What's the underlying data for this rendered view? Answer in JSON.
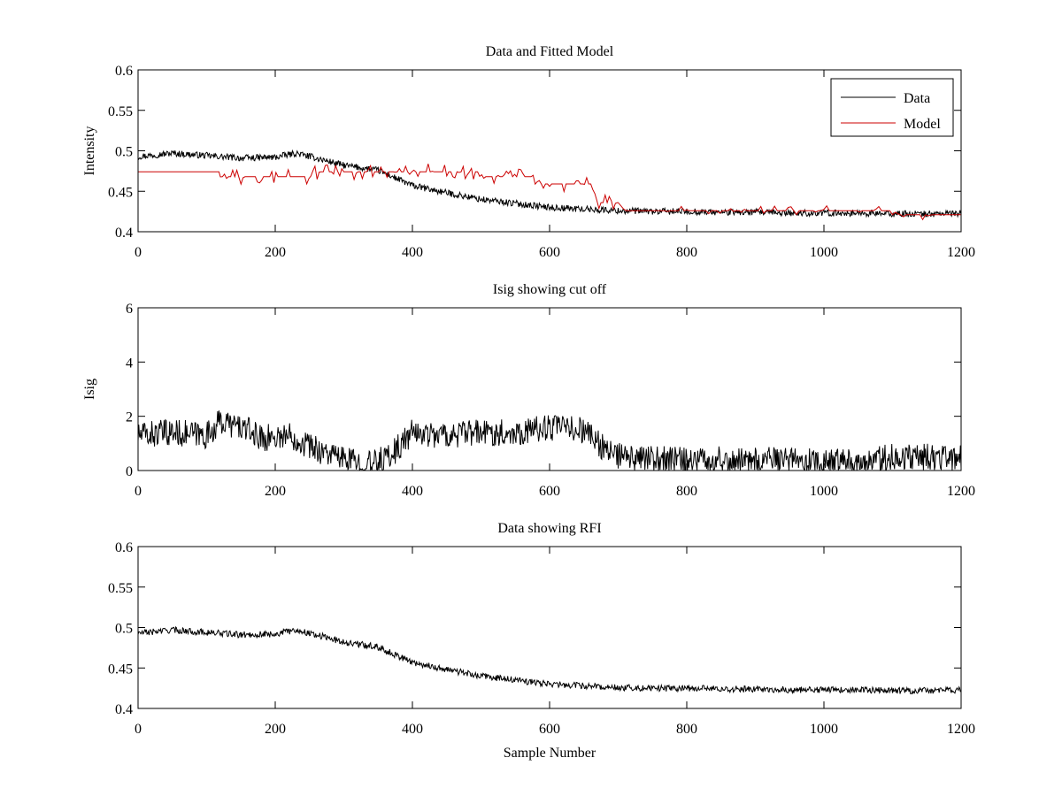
{
  "chart_data": [
    {
      "type": "line",
      "title": "Data and Fitted Model",
      "xlabel": "",
      "ylabel": "Intensity",
      "xlim": [
        0,
        1200
      ],
      "ylim": [
        0.4,
        0.6
      ],
      "xticks": [
        0,
        200,
        400,
        600,
        800,
        1000,
        1200
      ],
      "xtick_labels": [
        "0",
        "200",
        "400",
        "600",
        "800",
        "1000",
        "1200"
      ],
      "yticks": [
        0.4,
        0.45,
        0.5,
        0.55,
        0.6
      ],
      "ytick_labels": [
        "0.4",
        "0.45",
        "0.5",
        "0.55",
        "0.6"
      ],
      "grid": false,
      "legend": "top-right",
      "series": [
        {
          "name": "Data",
          "color": "#000000",
          "x": [
            0,
            50,
            100,
            150,
            200,
            230,
            260,
            300,
            350,
            400,
            450,
            500,
            550,
            600,
            650,
            700,
            750,
            800,
            850,
            900,
            950,
            1000,
            1050,
            1100,
            1150,
            1200
          ],
          "values": [
            0.493,
            0.497,
            0.494,
            0.491,
            0.492,
            0.497,
            0.491,
            0.482,
            0.476,
            0.457,
            0.448,
            0.44,
            0.435,
            0.43,
            0.428,
            0.426,
            0.425,
            0.425,
            0.424,
            0.424,
            0.423,
            0.423,
            0.423,
            0.422,
            0.422,
            0.423
          ],
          "noise": 0.004
        },
        {
          "name": "Model",
          "color": "#cc0000",
          "x": [
            0,
            115,
            120,
            250,
            265,
            345,
            355,
            495,
            505,
            575,
            585,
            660,
            670,
            700,
            710,
            1100,
            1110,
            1200
          ],
          "values": [
            0.474,
            0.474,
            0.468,
            0.468,
            0.474,
            0.474,
            0.474,
            0.474,
            0.468,
            0.468,
            0.459,
            0.459,
            0.436,
            0.436,
            0.426,
            0.426,
            0.421,
            0.421
          ]
        }
      ]
    },
    {
      "type": "line",
      "title": "Isig showing cut off",
      "xlabel": "",
      "ylabel": "Isig",
      "xlim": [
        0,
        1200
      ],
      "ylim": [
        0,
        6
      ],
      "xticks": [
        0,
        200,
        400,
        600,
        800,
        1000,
        1200
      ],
      "xtick_labels": [
        "0",
        "200",
        "400",
        "600",
        "800",
        "1000",
        "1200"
      ],
      "yticks": [
        0,
        2,
        4,
        6
      ],
      "ytick_labels": [
        "0",
        "2",
        "4",
        "6"
      ],
      "grid": false,
      "series": [
        {
          "color": "#000000",
          "x": [
            0,
            50,
            100,
            120,
            150,
            180,
            220,
            260,
            300,
            340,
            370,
            400,
            450,
            500,
            550,
            600,
            650,
            690,
            720,
            800,
            900,
            1000,
            1050,
            1100,
            1200
          ],
          "values": [
            1.3,
            1.4,
            1.3,
            1.8,
            1.6,
            1.2,
            1.3,
            0.8,
            0.4,
            0.2,
            0.6,
            1.4,
            1.3,
            1.4,
            1.4,
            1.6,
            1.5,
            0.6,
            0.4,
            0.4,
            0.4,
            0.3,
            0.3,
            0.5,
            0.5
          ],
          "noise": 0.5
        }
      ]
    },
    {
      "type": "line",
      "title": "Data showing RFI",
      "xlabel": "Sample Number",
      "ylabel": "",
      "xlim": [
        0,
        1200
      ],
      "ylim": [
        0.4,
        0.6
      ],
      "xticks": [
        0,
        200,
        400,
        600,
        800,
        1000,
        1200
      ],
      "xtick_labels": [
        "0",
        "200",
        "400",
        "600",
        "800",
        "1000",
        "1200"
      ],
      "yticks": [
        0.4,
        0.45,
        0.5,
        0.55,
        0.6
      ],
      "ytick_labels": [
        "0.4",
        "0.45",
        "0.5",
        "0.55",
        "0.6"
      ],
      "grid": false,
      "series": [
        {
          "color": "#000000",
          "x": [
            0,
            50,
            100,
            150,
            200,
            230,
            260,
            300,
            350,
            400,
            450,
            500,
            550,
            600,
            650,
            700,
            750,
            800,
            850,
            900,
            950,
            1000,
            1050,
            1100,
            1150,
            1200
          ],
          "values": [
            0.493,
            0.497,
            0.494,
            0.491,
            0.492,
            0.497,
            0.491,
            0.482,
            0.476,
            0.457,
            0.448,
            0.44,
            0.435,
            0.43,
            0.428,
            0.426,
            0.425,
            0.425,
            0.424,
            0.424,
            0.423,
            0.423,
            0.423,
            0.422,
            0.422,
            0.423
          ],
          "noise": 0.004
        }
      ]
    }
  ]
}
